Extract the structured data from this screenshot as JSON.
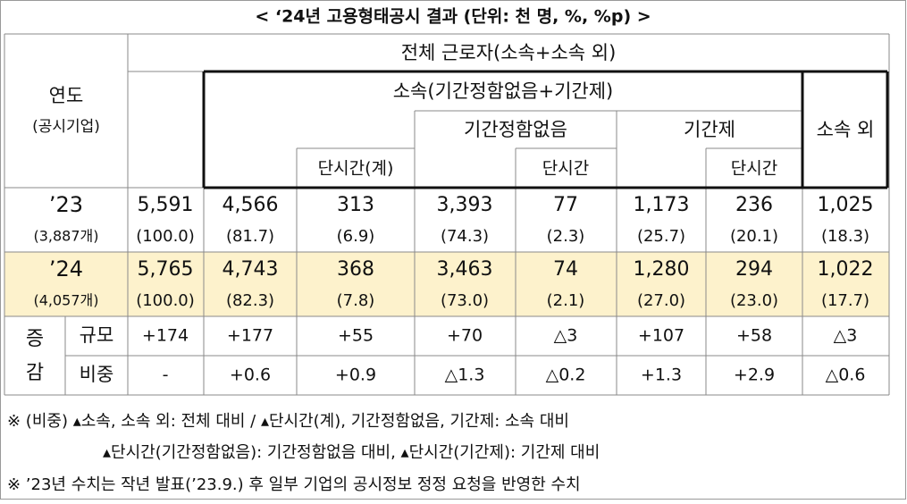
{
  "title": "< ‘24년 고용형태공시 결과 (단위: 천 명, %, %p) >",
  "header": {
    "year": "연도",
    "year_sub": "(공시기업)",
    "total": "전체 근로자(소속+소속 외)",
    "affiliated": "소속(기간정함없음+기간제)",
    "indefinite": "기간정함없음",
    "fixed": "기간제",
    "outsourced": "소속 외",
    "parttime_total": "단시간(계)",
    "parttime_indefinite": "단시간",
    "parttime_fixed": "단시간"
  },
  "rows": [
    {
      "year": "’23",
      "count": "(3,887개)",
      "values": [
        "5,591",
        "4,566",
        "313",
        "3,393",
        "77",
        "1,173",
        "236",
        "1,025"
      ],
      "shares": [
        "(100.0)",
        "(81.7)",
        "(6.9)",
        "(74.3)",
        "(2.3)",
        "(25.7)",
        "(20.1)",
        "(18.3)"
      ]
    },
    {
      "year": "’24",
      "count": "(4,057개)",
      "values": [
        "5,765",
        "4,743",
        "368",
        "3,463",
        "74",
        "1,280",
        "294",
        "1,022"
      ],
      "shares": [
        "(100.0)",
        "(82.3)",
        "(7.8)",
        "(73.0)",
        "(2.1)",
        "(27.0)",
        "(23.0)",
        "(17.7)"
      ]
    }
  ],
  "change": {
    "label_top": "증",
    "label_bottom": "감",
    "rows": [
      {
        "label": "규모",
        "values": [
          "+174",
          "+177",
          "+55",
          "+70",
          "△3",
          "+107",
          "+58",
          "△3"
        ]
      },
      {
        "label": "비중",
        "values": [
          "-",
          "+0.6",
          "+0.9",
          "△1.3",
          "△0.2",
          "+1.3",
          "+2.9",
          "△0.6"
        ]
      }
    ]
  },
  "notes": [
    "※ (비중) ▴소속, 소속 외: 전체 대비 / ▴단시간(계), 기간정함없음, 기간제: 소속 대비",
    "▴단시간(기간정함없음): 기간정함없음 대비, ▴단시간(기간제): 기간제 대비",
    "※ ’23년 수치는 작년 발표(’23.9.) 후 일부 기업의 공시정보 정정 요청을 반영한 수치"
  ]
}
